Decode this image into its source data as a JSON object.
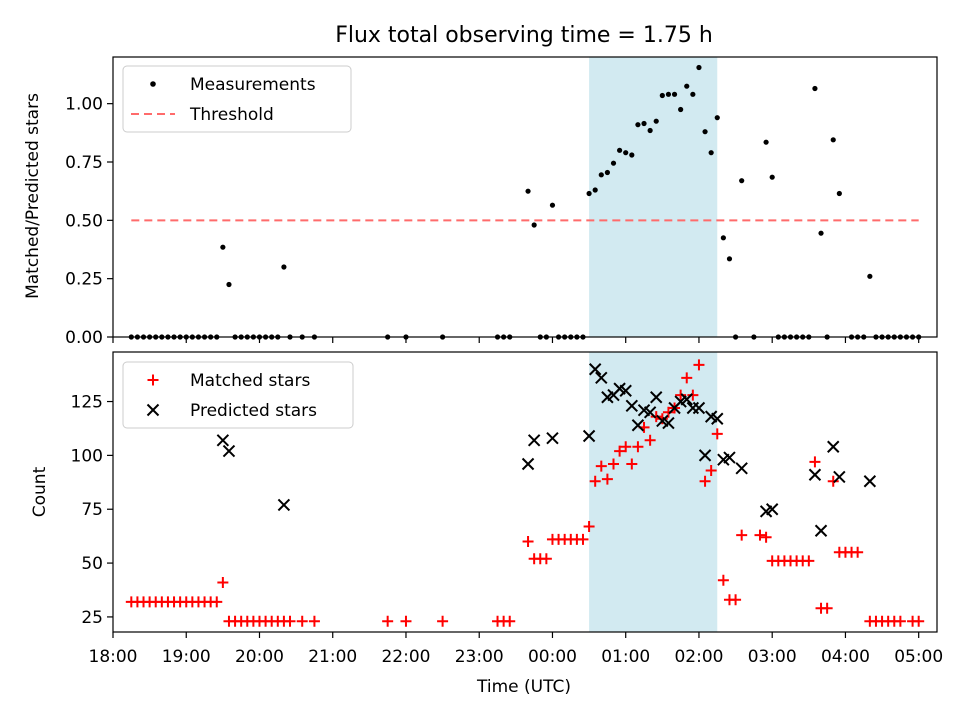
{
  "figure": {
    "title": "Flux total observing time = 1.75 h",
    "xlabel": "Time (UTC)"
  },
  "colors": {
    "highlight": "#add8e6",
    "threshold": "#ff6b6b",
    "measurement": "#000000",
    "matched": "#ff0000",
    "predicted": "#000000"
  },
  "chart_data": [
    {
      "type": "scatter",
      "panel": "top",
      "ylabel": "Matched/Predicted stars",
      "xlim": [
        "18:00",
        "05:15"
      ],
      "ylim": [
        0,
        1.2
      ],
      "yticks": [
        "0.00",
        "0.25",
        "0.50",
        "0.75",
        "1.00"
      ],
      "highlight_span": [
        "00:30",
        "02:15"
      ],
      "legend_position": "top-left",
      "threshold": {
        "name": "Threshold",
        "y": 0.5,
        "x": [
          "18:15",
          "05:00"
        ]
      },
      "series": [
        {
          "name": "Measurements",
          "marker": "dot",
          "points": [
            [
              "18:15",
              0
            ],
            [
              "18:20",
              0
            ],
            [
              "18:25",
              0
            ],
            [
              "18:30",
              0
            ],
            [
              "18:35",
              0
            ],
            [
              "18:40",
              0
            ],
            [
              "18:45",
              0
            ],
            [
              "18:50",
              0
            ],
            [
              "18:55",
              0
            ],
            [
              "19:00",
              0
            ],
            [
              "19:05",
              0
            ],
            [
              "19:10",
              0
            ],
            [
              "19:15",
              0
            ],
            [
              "19:20",
              0
            ],
            [
              "19:25",
              0
            ],
            [
              "19:30",
              0.385
            ],
            [
              "19:35",
              0.225
            ],
            [
              "19:40",
              0
            ],
            [
              "19:45",
              0
            ],
            [
              "19:50",
              0
            ],
            [
              "19:55",
              0
            ],
            [
              "20:00",
              0
            ],
            [
              "20:05",
              0
            ],
            [
              "20:10",
              0
            ],
            [
              "20:15",
              0
            ],
            [
              "20:20",
              0.3
            ],
            [
              "20:25",
              0
            ],
            [
              "20:35",
              0
            ],
            [
              "20:45",
              0
            ],
            [
              "21:45",
              0
            ],
            [
              "22:00",
              0
            ],
            [
              "22:30",
              0
            ],
            [
              "23:15",
              0
            ],
            [
              "23:20",
              0
            ],
            [
              "23:25",
              0
            ],
            [
              "23:40",
              0.625
            ],
            [
              "23:45",
              0.48
            ],
            [
              "23:50",
              0
            ],
            [
              "23:55",
              0
            ],
            [
              "00:00",
              0.565
            ],
            [
              "00:05",
              0
            ],
            [
              "00:10",
              0
            ],
            [
              "00:15",
              0
            ],
            [
              "00:20",
              0
            ],
            [
              "00:25",
              0
            ],
            [
              "00:30",
              0.615
            ],
            [
              "00:35",
              0.63
            ],
            [
              "00:40",
              0.695
            ],
            [
              "00:45",
              0.705
            ],
            [
              "00:50",
              0.745
            ],
            [
              "00:55",
              0.8
            ],
            [
              "01:00",
              0.79
            ],
            [
              "01:05",
              0.78
            ],
            [
              "01:10",
              0.91
            ],
            [
              "01:15",
              0.915
            ],
            [
              "01:20",
              0.885
            ],
            [
              "01:25",
              0.925
            ],
            [
              "01:30",
              1.035
            ],
            [
              "01:35",
              1.04
            ],
            [
              "01:40",
              1.04
            ],
            [
              "01:45",
              0.975
            ],
            [
              "01:50",
              1.075
            ],
            [
              "01:55",
              1.04
            ],
            [
              "02:00",
              1.155
            ],
            [
              "02:05",
              0.88
            ],
            [
              "02:10",
              0.79
            ],
            [
              "02:15",
              0.94
            ],
            [
              "02:20",
              0.425
            ],
            [
              "02:25",
              0.335
            ],
            [
              "02:30",
              0
            ],
            [
              "02:35",
              0.67
            ],
            [
              "02:45",
              0
            ],
            [
              "02:55",
              0.835
            ],
            [
              "03:00",
              0.685
            ],
            [
              "03:05",
              0
            ],
            [
              "03:10",
              0
            ],
            [
              "03:15",
              0
            ],
            [
              "03:20",
              0
            ],
            [
              "03:25",
              0
            ],
            [
              "03:30",
              0
            ],
            [
              "03:35",
              1.065
            ],
            [
              "03:40",
              0.445
            ],
            [
              "03:45",
              0
            ],
            [
              "03:50",
              0.845
            ],
            [
              "03:55",
              0.615
            ],
            [
              "04:05",
              0
            ],
            [
              "04:10",
              0
            ],
            [
              "04:15",
              0
            ],
            [
              "04:20",
              0.26
            ],
            [
              "04:25",
              0
            ],
            [
              "04:30",
              0
            ],
            [
              "04:35",
              0
            ],
            [
              "04:40",
              0
            ],
            [
              "04:45",
              0
            ],
            [
              "04:50",
              0
            ],
            [
              "04:55",
              0
            ],
            [
              "05:00",
              0
            ]
          ]
        }
      ]
    },
    {
      "type": "scatter",
      "panel": "bottom",
      "ylabel": "Count",
      "xlabel": "Time (UTC)",
      "xlim": [
        "18:00",
        "05:15"
      ],
      "ylim": [
        18,
        148
      ],
      "yticks": [
        "25",
        "50",
        "75",
        "100",
        "125"
      ],
      "xticks": [
        "18:00",
        "19:00",
        "20:00",
        "21:00",
        "22:00",
        "23:00",
        "00:00",
        "01:00",
        "02:00",
        "03:00",
        "04:00",
        "05:00"
      ],
      "highlight_span": [
        "00:30",
        "02:15"
      ],
      "legend_position": "top-left",
      "series": [
        {
          "name": "Matched stars",
          "marker": "plus",
          "points": [
            [
              "18:15",
              32
            ],
            [
              "18:20",
              32
            ],
            [
              "18:25",
              32
            ],
            [
              "18:30",
              32
            ],
            [
              "18:35",
              32
            ],
            [
              "18:40",
              32
            ],
            [
              "18:45",
              32
            ],
            [
              "18:50",
              32
            ],
            [
              "18:55",
              32
            ],
            [
              "19:00",
              32
            ],
            [
              "19:05",
              32
            ],
            [
              "19:10",
              32
            ],
            [
              "19:15",
              32
            ],
            [
              "19:20",
              32
            ],
            [
              "19:25",
              32
            ],
            [
              "19:30",
              41
            ],
            [
              "19:35",
              23
            ],
            [
              "19:40",
              23
            ],
            [
              "19:45",
              23
            ],
            [
              "19:50",
              23
            ],
            [
              "19:55",
              23
            ],
            [
              "20:00",
              23
            ],
            [
              "20:05",
              23
            ],
            [
              "20:10",
              23
            ],
            [
              "20:15",
              23
            ],
            [
              "20:20",
              23
            ],
            [
              "20:25",
              23
            ],
            [
              "20:35",
              23
            ],
            [
              "20:45",
              23
            ],
            [
              "21:45",
              23
            ],
            [
              "22:00",
              23
            ],
            [
              "22:30",
              23
            ],
            [
              "23:15",
              23
            ],
            [
              "23:20",
              23
            ],
            [
              "23:25",
              23
            ],
            [
              "23:40",
              60
            ],
            [
              "23:45",
              52
            ],
            [
              "23:50",
              52
            ],
            [
              "23:55",
              52
            ],
            [
              "00:00",
              61
            ],
            [
              "00:05",
              61
            ],
            [
              "00:10",
              61
            ],
            [
              "00:15",
              61
            ],
            [
              "00:20",
              61
            ],
            [
              "00:25",
              61
            ],
            [
              "00:30",
              67
            ],
            [
              "00:35",
              88
            ],
            [
              "00:40",
              95
            ],
            [
              "00:45",
              89
            ],
            [
              "00:50",
              96
            ],
            [
              "00:55",
              102
            ],
            [
              "01:00",
              104
            ],
            [
              "01:05",
              96
            ],
            [
              "01:10",
              104
            ],
            [
              "01:15",
              113
            ],
            [
              "01:20",
              107
            ],
            [
              "01:25",
              118
            ],
            [
              "01:30",
              117
            ],
            [
              "01:35",
              120
            ],
            [
              "01:40",
              122
            ],
            [
              "01:45",
              128
            ],
            [
              "01:50",
              136
            ],
            [
              "01:55",
              128
            ],
            [
              "02:00",
              142
            ],
            [
              "02:05",
              88
            ],
            [
              "02:10",
              93
            ],
            [
              "02:15",
              110
            ],
            [
              "02:20",
              42
            ],
            [
              "02:25",
              33
            ],
            [
              "02:30",
              33
            ],
            [
              "02:35",
              63
            ],
            [
              "02:50",
              63
            ],
            [
              "02:55",
              62
            ],
            [
              "03:00",
              51
            ],
            [
              "03:05",
              51
            ],
            [
              "03:10",
              51
            ],
            [
              "03:15",
              51
            ],
            [
              "03:20",
              51
            ],
            [
              "03:25",
              51
            ],
            [
              "03:30",
              51
            ],
            [
              "03:35",
              97
            ],
            [
              "03:40",
              29
            ],
            [
              "03:45",
              29
            ],
            [
              "03:50",
              88
            ],
            [
              "03:55",
              55
            ],
            [
              "04:00",
              55
            ],
            [
              "04:05",
              55
            ],
            [
              "04:10",
              55
            ],
            [
              "04:20",
              23
            ],
            [
              "04:25",
              23
            ],
            [
              "04:30",
              23
            ],
            [
              "04:35",
              23
            ],
            [
              "04:40",
              23
            ],
            [
              "04:45",
              23
            ],
            [
              "04:55",
              23
            ],
            [
              "05:00",
              23
            ]
          ]
        },
        {
          "name": "Predicted stars",
          "marker": "x",
          "points": [
            [
              "19:30",
              107
            ],
            [
              "19:35",
              102
            ],
            [
              "20:20",
              77
            ],
            [
              "23:40",
              96
            ],
            [
              "23:45",
              107
            ],
            [
              "00:00",
              108
            ],
            [
              "00:30",
              109
            ],
            [
              "00:35",
              140
            ],
            [
              "00:40",
              136
            ],
            [
              "00:45",
              127
            ],
            [
              "00:50",
              128
            ],
            [
              "00:55",
              131
            ],
            [
              "01:00",
              130
            ],
            [
              "01:05",
              123
            ],
            [
              "01:10",
              114
            ],
            [
              "01:15",
              121
            ],
            [
              "01:20",
              120
            ],
            [
              "01:25",
              127
            ],
            [
              "01:30",
              116
            ],
            [
              "01:35",
              115
            ],
            [
              "01:40",
              122
            ],
            [
              "01:45",
              125
            ],
            [
              "01:50",
              126
            ],
            [
              "01:55",
              122
            ],
            [
              "02:00",
              122
            ],
            [
              "02:05",
              100
            ],
            [
              "02:10",
              118
            ],
            [
              "02:15",
              117
            ],
            [
              "02:20",
              98
            ],
            [
              "02:25",
              99
            ],
            [
              "02:35",
              94
            ],
            [
              "02:55",
              74
            ],
            [
              "03:00",
              75
            ],
            [
              "03:35",
              91
            ],
            [
              "03:40",
              65
            ],
            [
              "03:50",
              104
            ],
            [
              "03:55",
              90
            ],
            [
              "04:20",
              88
            ]
          ]
        }
      ]
    }
  ]
}
